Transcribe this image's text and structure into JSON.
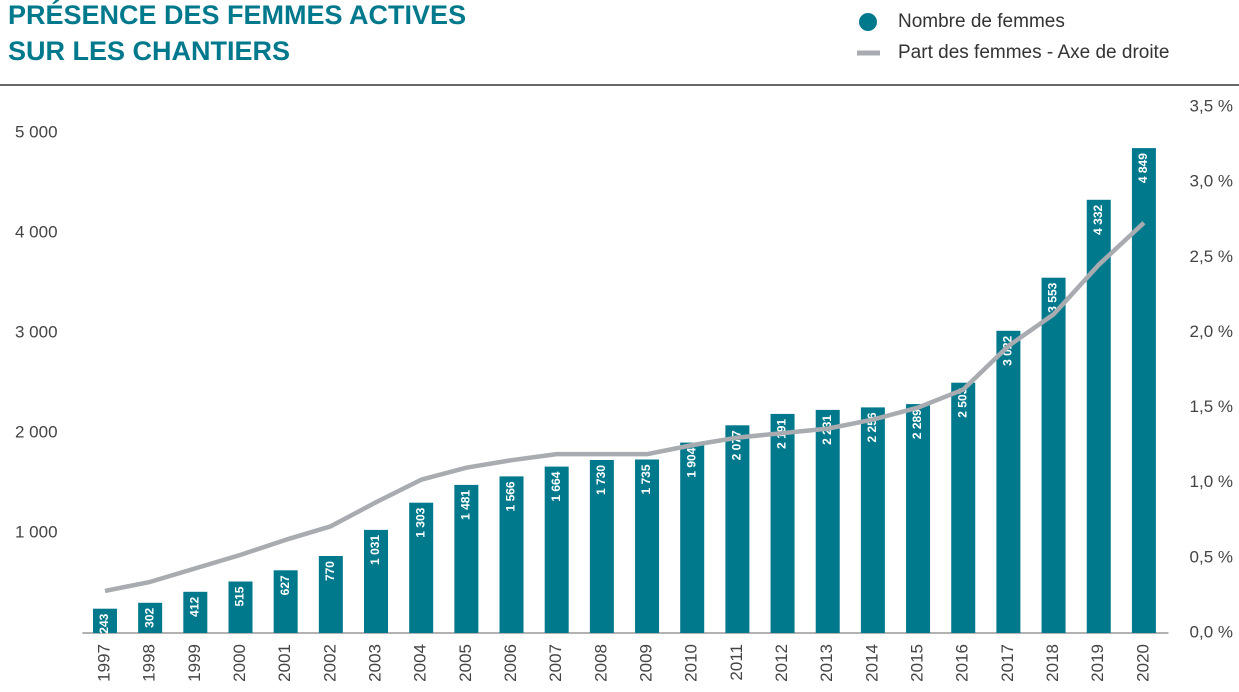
{
  "chart_data": {
    "type": "bar",
    "title": [
      "PRÉSENCE DES FEMMES ACTIVES",
      "SUR LES CHANTIERS"
    ],
    "categories": [
      "1997",
      "1998",
      "1999",
      "2000",
      "2001",
      "2002",
      "2003",
      "2004",
      "2005",
      "2006",
      "2007",
      "2008",
      "2009",
      "2010",
      "2011",
      "2012",
      "2013",
      "2014",
      "2015",
      "2016",
      "2017",
      "2018",
      "2019",
      "2020"
    ],
    "series": [
      {
        "name": "Nombre de femmes",
        "type": "bar",
        "color": "#00798c",
        "values": [
          243,
          302,
          412,
          515,
          627,
          770,
          1031,
          1303,
          1481,
          1566,
          1664,
          1730,
          1735,
          1904,
          2077,
          2191,
          2231,
          2256,
          2289,
          2503,
          3022,
          3553,
          4332,
          4849
        ],
        "value_labels": [
          "243",
          "302",
          "412",
          "515",
          "627",
          "770",
          "1 031",
          "1 303",
          "1 481",
          "1 566",
          "1 664",
          "1 730",
          "1 735",
          "1 904",
          "2 077",
          "2 191",
          "2 231",
          "2 256",
          "2 289",
          "2 503",
          "3 022",
          "3 553",
          "4 332",
          "4 849"
        ]
      },
      {
        "name": "Part des femmes  - Axe de droite",
        "type": "line",
        "axis": "y2",
        "color": "#a8abb0",
        "values": [
          0.28,
          0.34,
          0.43,
          0.52,
          0.62,
          0.71,
          0.87,
          1.02,
          1.1,
          1.15,
          1.19,
          1.19,
          1.19,
          1.25,
          1.3,
          1.33,
          1.36,
          1.42,
          1.5,
          1.62,
          1.91,
          2.12,
          2.45,
          2.73
        ]
      }
    ],
    "ylim": [
      0,
      5260
    ],
    "yticks": [
      {
        "value": 1000,
        "label": "1 000"
      },
      {
        "value": 2000,
        "label": "2 000"
      },
      {
        "value": 3000,
        "label": "3 000"
      },
      {
        "value": 4000,
        "label": "4 000"
      },
      {
        "value": 5000,
        "label": "5 000"
      }
    ],
    "y2lim": [
      0,
      3.5
    ],
    "y2ticks": [
      {
        "value": 0,
        "label": "0,0 %"
      },
      {
        "value": 0.5,
        "label": "0,5 %"
      },
      {
        "value": 1,
        "label": "1,0 %"
      },
      {
        "value": 1.5,
        "label": "1,5 %"
      },
      {
        "value": 2,
        "label": "2,0 %"
      },
      {
        "value": 2.5,
        "label": "2,5 %"
      },
      {
        "value": 3,
        "label": "3,0 %"
      },
      {
        "value": 3.5,
        "label": "3,5 %"
      }
    ],
    "legend": "top-right"
  }
}
